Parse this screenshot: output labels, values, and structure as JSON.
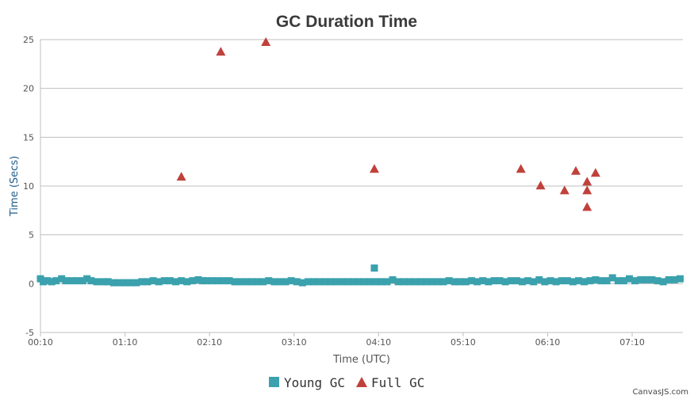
{
  "chart_data": {
    "type": "scatter",
    "title": "GC Duration Time",
    "xlabel": "Time (UTC)",
    "ylabel": "Time (Secs)",
    "x_unit": "HH:MM (UTC)",
    "xlim": [
      "00:10",
      "07:46"
    ],
    "ylim": [
      -5,
      25
    ],
    "y_ticks": [
      -5,
      0,
      5,
      10,
      15,
      20,
      25
    ],
    "x_ticks": [
      "00:10",
      "01:10",
      "02:10",
      "03:10",
      "04:10",
      "05:10",
      "06:10",
      "07:10"
    ],
    "grid": "horizontal",
    "legend_position": "bottom-center",
    "series": [
      {
        "name": "Young GC",
        "marker": "square",
        "color": "#3aa1ad",
        "points": [
          {
            "x": "00:10",
            "y": 0.5
          },
          {
            "x": "00:12",
            "y": 0.2
          },
          {
            "x": "00:15",
            "y": 0.3
          },
          {
            "x": "00:18",
            "y": 0.2
          },
          {
            "x": "00:21",
            "y": 0.3
          },
          {
            "x": "00:25",
            "y": 0.5
          },
          {
            "x": "00:28",
            "y": 0.3
          },
          {
            "x": "00:32",
            "y": 0.3
          },
          {
            "x": "00:36",
            "y": 0.3
          },
          {
            "x": "00:40",
            "y": 0.3
          },
          {
            "x": "00:43",
            "y": 0.5
          },
          {
            "x": "00:46",
            "y": 0.3
          },
          {
            "x": "00:50",
            "y": 0.2
          },
          {
            "x": "00:55",
            "y": 0.2
          },
          {
            "x": "00:58",
            "y": 0.2
          },
          {
            "x": "01:02",
            "y": 0.1
          },
          {
            "x": "01:06",
            "y": 0.1
          },
          {
            "x": "01:10",
            "y": 0.1
          },
          {
            "x": "01:14",
            "y": 0.1
          },
          {
            "x": "01:18",
            "y": 0.1
          },
          {
            "x": "01:22",
            "y": 0.2
          },
          {
            "x": "01:26",
            "y": 0.2
          },
          {
            "x": "01:30",
            "y": 0.3
          },
          {
            "x": "01:34",
            "y": 0.2
          },
          {
            "x": "01:38",
            "y": 0.3
          },
          {
            "x": "01:42",
            "y": 0.3
          },
          {
            "x": "01:46",
            "y": 0.2
          },
          {
            "x": "01:50",
            "y": 0.3
          },
          {
            "x": "01:54",
            "y": 0.2
          },
          {
            "x": "01:58",
            "y": 0.3
          },
          {
            "x": "02:02",
            "y": 0.4
          },
          {
            "x": "02:05",
            "y": 0.3
          },
          {
            "x": "02:08",
            "y": 0.3
          },
          {
            "x": "02:12",
            "y": 0.3
          },
          {
            "x": "02:16",
            "y": 0.3
          },
          {
            "x": "02:20",
            "y": 0.3
          },
          {
            "x": "02:24",
            "y": 0.3
          },
          {
            "x": "02:28",
            "y": 0.2
          },
          {
            "x": "02:32",
            "y": 0.2
          },
          {
            "x": "02:36",
            "y": 0.2
          },
          {
            "x": "02:40",
            "y": 0.2
          },
          {
            "x": "02:44",
            "y": 0.2
          },
          {
            "x": "02:48",
            "y": 0.2
          },
          {
            "x": "02:52",
            "y": 0.3
          },
          {
            "x": "02:56",
            "y": 0.2
          },
          {
            "x": "03:00",
            "y": 0.2
          },
          {
            "x": "03:04",
            "y": 0.2
          },
          {
            "x": "03:08",
            "y": 0.3
          },
          {
            "x": "03:12",
            "y": 0.2
          },
          {
            "x": "03:16",
            "y": 0.1
          },
          {
            "x": "03:20",
            "y": 0.2
          },
          {
            "x": "03:24",
            "y": 0.2
          },
          {
            "x": "03:28",
            "y": 0.2
          },
          {
            "x": "03:32",
            "y": 0.2
          },
          {
            "x": "03:36",
            "y": 0.2
          },
          {
            "x": "03:40",
            "y": 0.2
          },
          {
            "x": "03:44",
            "y": 0.2
          },
          {
            "x": "03:48",
            "y": 0.2
          },
          {
            "x": "03:52",
            "y": 0.2
          },
          {
            "x": "03:56",
            "y": 0.2
          },
          {
            "x": "04:00",
            "y": 0.2
          },
          {
            "x": "04:04",
            "y": 0.2
          },
          {
            "x": "04:07",
            "y": 1.6
          },
          {
            "x": "04:08",
            "y": 0.2
          },
          {
            "x": "04:12",
            "y": 0.2
          },
          {
            "x": "04:16",
            "y": 0.2
          },
          {
            "x": "04:20",
            "y": 0.4
          },
          {
            "x": "04:24",
            "y": 0.2
          },
          {
            "x": "04:28",
            "y": 0.2
          },
          {
            "x": "04:32",
            "y": 0.2
          },
          {
            "x": "04:36",
            "y": 0.2
          },
          {
            "x": "04:40",
            "y": 0.2
          },
          {
            "x": "04:44",
            "y": 0.2
          },
          {
            "x": "04:48",
            "y": 0.2
          },
          {
            "x": "04:52",
            "y": 0.2
          },
          {
            "x": "04:56",
            "y": 0.2
          },
          {
            "x": "05:00",
            "y": 0.3
          },
          {
            "x": "05:04",
            "y": 0.2
          },
          {
            "x": "05:08",
            "y": 0.2
          },
          {
            "x": "05:12",
            "y": 0.2
          },
          {
            "x": "05:16",
            "y": 0.3
          },
          {
            "x": "05:20",
            "y": 0.2
          },
          {
            "x": "05:24",
            "y": 0.3
          },
          {
            "x": "05:28",
            "y": 0.2
          },
          {
            "x": "05:32",
            "y": 0.3
          },
          {
            "x": "05:36",
            "y": 0.3
          },
          {
            "x": "05:40",
            "y": 0.2
          },
          {
            "x": "05:44",
            "y": 0.3
          },
          {
            "x": "05:48",
            "y": 0.3
          },
          {
            "x": "05:52",
            "y": 0.2
          },
          {
            "x": "05:56",
            "y": 0.3
          },
          {
            "x": "06:00",
            "y": 0.2
          },
          {
            "x": "06:04",
            "y": 0.4
          },
          {
            "x": "06:08",
            "y": 0.2
          },
          {
            "x": "06:12",
            "y": 0.3
          },
          {
            "x": "06:16",
            "y": 0.2
          },
          {
            "x": "06:20",
            "y": 0.3
          },
          {
            "x": "06:24",
            "y": 0.3
          },
          {
            "x": "06:28",
            "y": 0.2
          },
          {
            "x": "06:32",
            "y": 0.3
          },
          {
            "x": "06:36",
            "y": 0.2
          },
          {
            "x": "06:40",
            "y": 0.3
          },
          {
            "x": "06:44",
            "y": 0.4
          },
          {
            "x": "06:48",
            "y": 0.3
          },
          {
            "x": "06:52",
            "y": 0.3
          },
          {
            "x": "06:56",
            "y": 0.6
          },
          {
            "x": "07:00",
            "y": 0.3
          },
          {
            "x": "07:04",
            "y": 0.3
          },
          {
            "x": "07:08",
            "y": 0.5
          },
          {
            "x": "07:12",
            "y": 0.3
          },
          {
            "x": "07:16",
            "y": 0.4
          },
          {
            "x": "07:20",
            "y": 0.4
          },
          {
            "x": "07:24",
            "y": 0.4
          },
          {
            "x": "07:28",
            "y": 0.3
          },
          {
            "x": "07:32",
            "y": 0.2
          },
          {
            "x": "07:36",
            "y": 0.4
          },
          {
            "x": "07:40",
            "y": 0.4
          },
          {
            "x": "07:44",
            "y": 0.5
          }
        ]
      },
      {
        "name": "Full GC",
        "marker": "triangle",
        "color": "#c0413b",
        "points": [
          {
            "x": "01:50",
            "y": 11.0
          },
          {
            "x": "02:18",
            "y": 23.8
          },
          {
            "x": "02:50",
            "y": 24.8
          },
          {
            "x": "04:07",
            "y": 11.8
          },
          {
            "x": "05:51",
            "y": 11.8
          },
          {
            "x": "06:05",
            "y": 10.1
          },
          {
            "x": "06:22",
            "y": 9.6
          },
          {
            "x": "06:30",
            "y": 11.6
          },
          {
            "x": "06:38",
            "y": 10.5
          },
          {
            "x": "06:38",
            "y": 9.6
          },
          {
            "x": "06:38",
            "y": 7.9
          },
          {
            "x": "06:44",
            "y": 11.4
          }
        ]
      }
    ]
  },
  "legend": {
    "items": [
      {
        "label": "Young GC",
        "color": "#3aa1ad",
        "icon": "square-icon"
      },
      {
        "label": "Full GC",
        "color": "#c0413b",
        "icon": "triangle-icon"
      }
    ]
  },
  "credit": "CanvasJS.com",
  "colors": {
    "title": "#3a3a3a",
    "axis_title": "#1f5c8a",
    "grid": "#bfbfbf",
    "axis_line": "#bfbfbf"
  }
}
